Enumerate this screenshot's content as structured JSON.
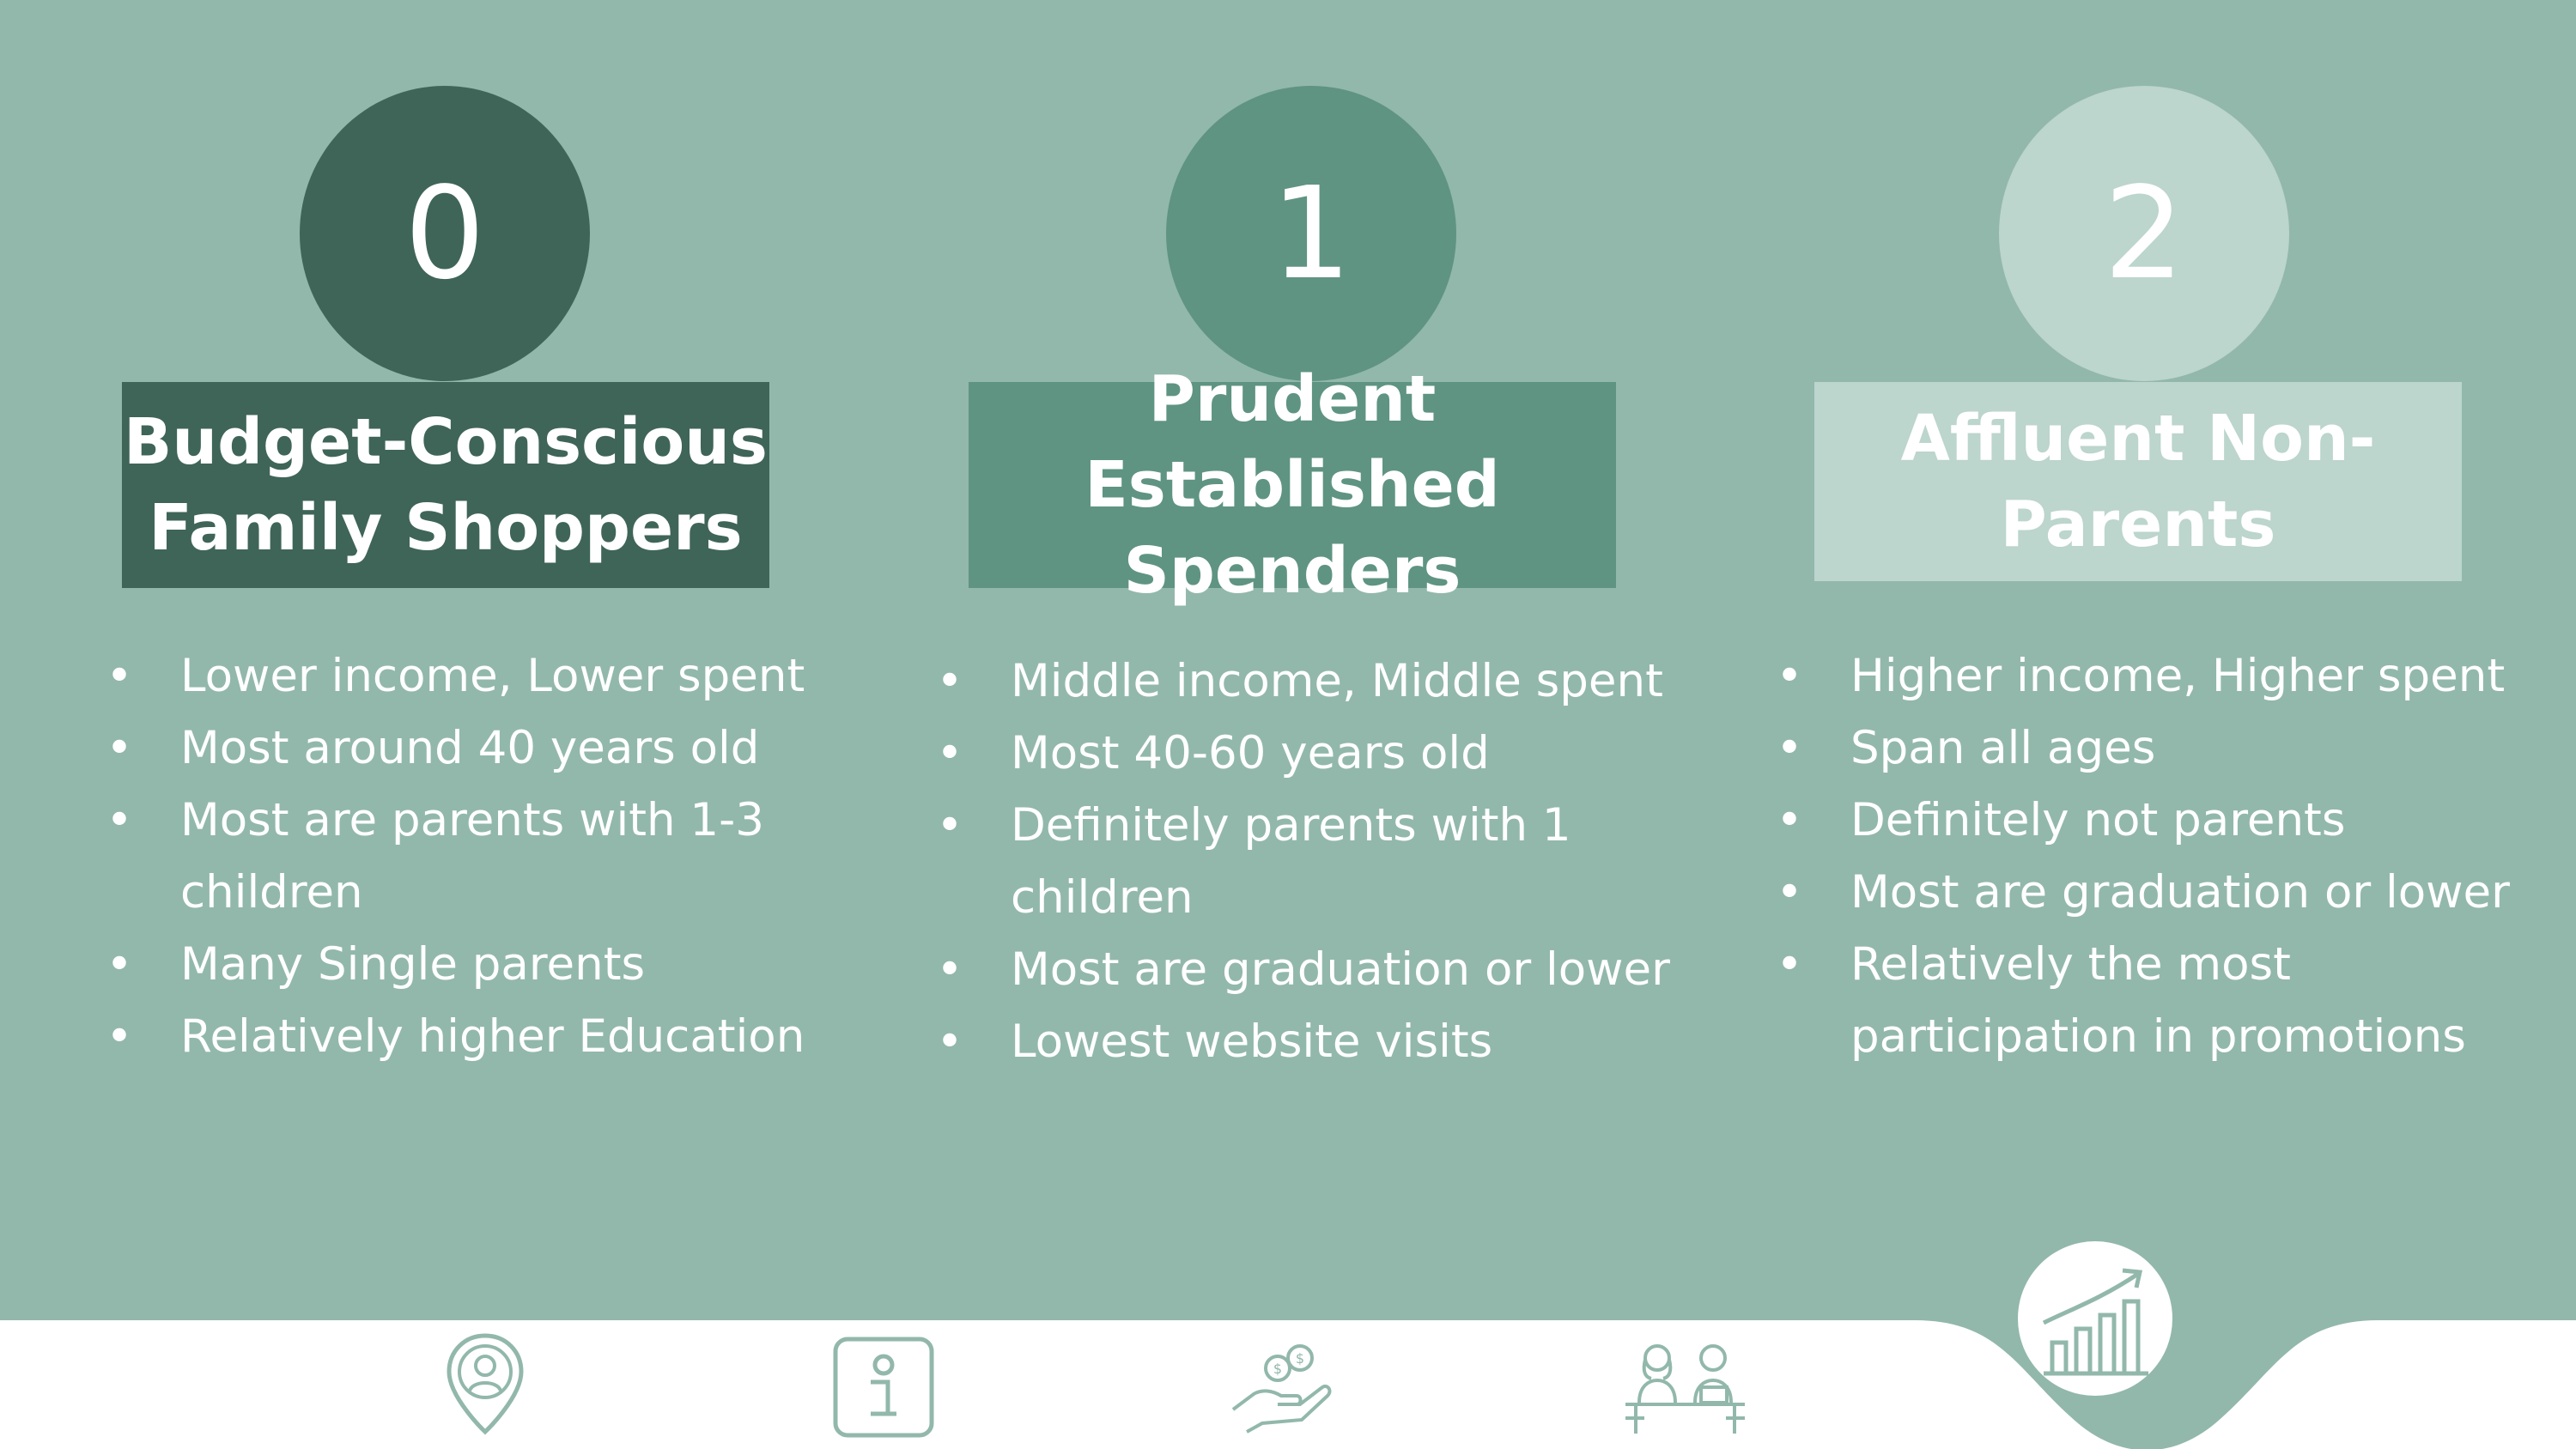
{
  "colors": {
    "background": "#92b8ab",
    "dark": "#3f6558",
    "medium": "#5f9482",
    "light": "#bcd5cd",
    "icon_stroke": "#92b8ab",
    "white": "#ffffff"
  },
  "clusters": [
    {
      "number": "0",
      "title_line1": "Budget-Conscious",
      "title_line2": "Family Shoppers",
      "bullets": [
        "Lower income, Lower spent",
        "Most around 40 years old",
        "Most are parents with 1-3 children",
        "Many Single parents",
        "Relatively higher Education"
      ]
    },
    {
      "number": "1",
      "title_line1": "Prudent Established",
      "title_line2": "Spenders",
      "bullets": [
        "Middle income, Middle spent",
        "Most 40-60 years old",
        "Definitely parents with 1 children",
        "Most are graduation or lower",
        "Lowest website visits"
      ]
    },
    {
      "number": "2",
      "title_line1": "Affluent Non-",
      "title_line2": "Parents",
      "bullets": [
        "Higher income, Higher spent",
        "Span all ages",
        "Definitely not parents",
        "Most are graduation or lower",
        "Relatively the most participation in promotions"
      ]
    }
  ],
  "bullet_char": "•",
  "nav_icons": [
    "location-person-icon",
    "info-icon",
    "money-hand-icon",
    "people-desk-icon",
    "growth-chart-icon"
  ]
}
